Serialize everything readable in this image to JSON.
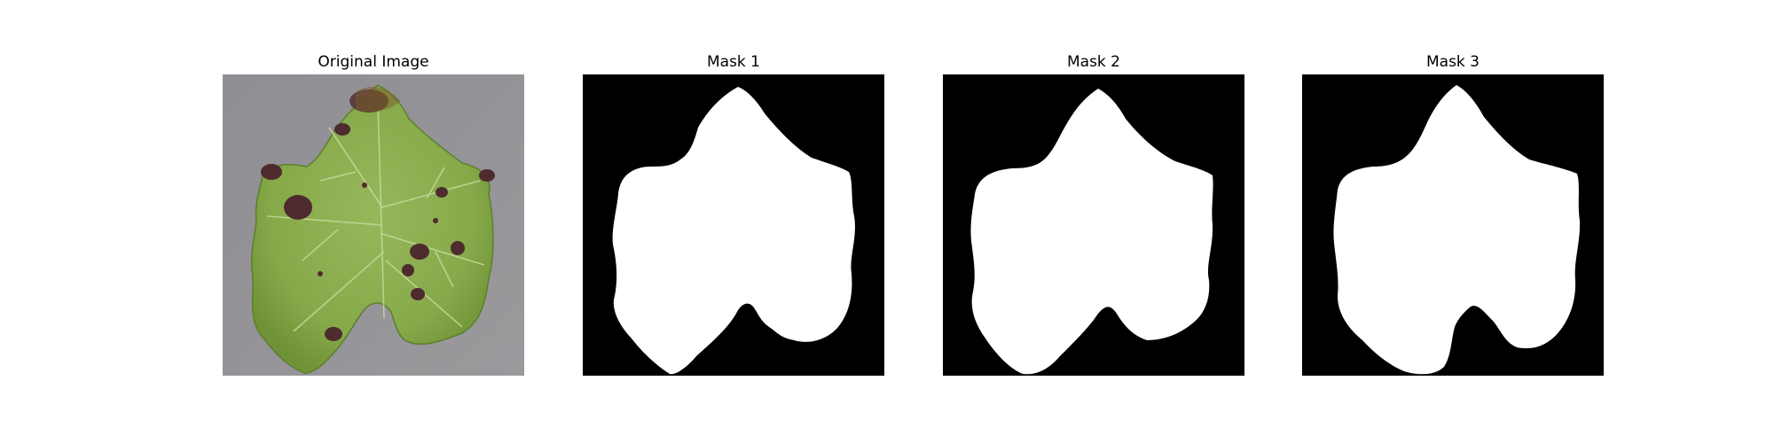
{
  "figure": {
    "panels": [
      {
        "title": "Original Image",
        "kind": "photo"
      },
      {
        "title": "Mask 1",
        "kind": "mask"
      },
      {
        "title": "Mask 2",
        "kind": "mask"
      },
      {
        "title": "Mask 3",
        "kind": "mask"
      }
    ]
  },
  "colors": {
    "background": "#ffffff",
    "mask_background": "#000000",
    "mask_foreground": "#ffffff",
    "photo_backdrop": "#8e8d90",
    "leaf_green": "#8aae4c",
    "leaf_dark_green": "#6f9639",
    "leaf_vein": "#c9d8a0",
    "lesion_brown": "#4e2b2e"
  }
}
